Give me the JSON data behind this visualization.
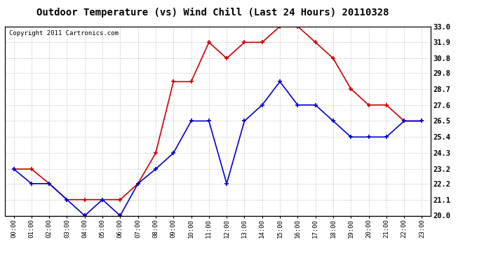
{
  "title": "Outdoor Temperature (vs) Wind Chill (Last 24 Hours) 20110328",
  "copyright": "Copyright 2011 Cartronics.com",
  "x_labels": [
    "00:00",
    "01:00",
    "02:00",
    "03:00",
    "04:00",
    "05:00",
    "06:00",
    "07:00",
    "08:00",
    "09:00",
    "10:00",
    "11:00",
    "12:00",
    "13:00",
    "14:00",
    "15:00",
    "16:00",
    "17:00",
    "18:00",
    "19:00",
    "20:00",
    "21:00",
    "22:00",
    "23:00"
  ],
  "red_data": [
    23.2,
    23.2,
    22.2,
    21.1,
    21.1,
    21.1,
    21.1,
    22.2,
    24.3,
    29.2,
    29.2,
    31.9,
    30.8,
    31.9,
    31.9,
    33.0,
    33.0,
    31.9,
    30.8,
    28.7,
    27.6,
    27.6,
    26.5,
    26.5
  ],
  "blue_data": [
    23.2,
    22.2,
    22.2,
    21.1,
    20.0,
    21.1,
    20.0,
    22.2,
    23.2,
    24.3,
    26.5,
    26.5,
    22.2,
    26.5,
    27.6,
    29.2,
    27.6,
    27.6,
    26.5,
    25.4,
    25.4,
    25.4,
    26.5,
    26.5
  ],
  "ylim": [
    20.0,
    33.0
  ],
  "yticks": [
    20.0,
    21.1,
    22.2,
    23.2,
    24.3,
    25.4,
    26.5,
    27.6,
    28.7,
    29.8,
    30.8,
    31.9,
    33.0
  ],
  "red_color": "#cc0000",
  "blue_color": "#0000cc",
  "bg_color": "#ffffff",
  "grid_color": "#bbbbbb",
  "title_fontsize": 10,
  "copyright_fontsize": 6.5
}
